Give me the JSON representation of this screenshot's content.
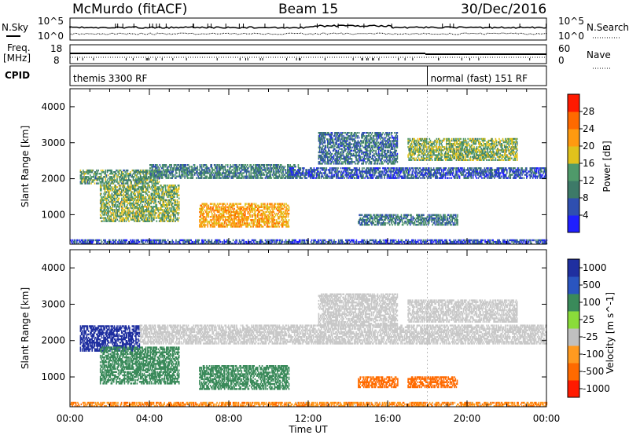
{
  "header": {
    "station": "McMurdo (fitACF)",
    "beam": "Beam 15",
    "date": "30/Dec/2016"
  },
  "aux": {
    "nsky_label": "N.Sky",
    "nsearch_label": "N.Search",
    "freq_label": "Freq.",
    "freq_unit": "[MHz]",
    "nave_label": "Nave",
    "cpid_label": "CPID",
    "nsky_ticks": [
      "10^5",
      "10^0"
    ],
    "freq_ticks": [
      "18",
      "8"
    ],
    "nave_ticks": [
      "60",
      "0"
    ],
    "cpid_segments": [
      {
        "label": "themis 3300 RF",
        "start_hour": 0,
        "end_hour": 18
      },
      {
        "label": "normal (fast) 151 RF",
        "start_hour": 18,
        "end_hour": 24
      }
    ]
  },
  "colors": {
    "power_scale": [
      "#1f1fff",
      "#2f4fb0",
      "#3d7a68",
      "#4f9a6a",
      "#e0c21c",
      "#ff9a10",
      "#ff6a00",
      "#ff1a00"
    ],
    "velocity_scale": [
      "#1f2fa0",
      "#2a55c0",
      "#3a8a5a",
      "#8adc3a",
      "#c0c0c0",
      "#ff9a20",
      "#ff6a00",
      "#ff1a00"
    ],
    "ground_scatter": "#c8c8c8"
  },
  "chart_data": [
    {
      "type": "heatmap",
      "title": "",
      "xlabel": "",
      "ylabel": "Slant Range [km]",
      "xlim": [
        0,
        24
      ],
      "ylim": [
        180,
        4500
      ],
      "x_ticks": [
        "00:00",
        "04:00",
        "08:00",
        "12:00",
        "16:00",
        "20:00",
        "00:00"
      ],
      "y_ticks": [
        1000,
        2000,
        3000,
        4000
      ],
      "colorbar": {
        "label": "Power [dB]",
        "ticks": [
          4,
          8,
          12,
          16,
          20,
          24,
          28
        ],
        "range": [
          0,
          30
        ]
      },
      "regions": [
        {
          "t0": 0.5,
          "t1": 4.5,
          "r0": 1850,
          "r1": 2250,
          "intensity": 12
        },
        {
          "t0": 4.0,
          "t1": 11.5,
          "r0": 2000,
          "r1": 2400,
          "intensity": 10
        },
        {
          "t0": 11.0,
          "t1": 24.0,
          "r0": 2000,
          "r1": 2300,
          "intensity": 6
        },
        {
          "t0": 12.5,
          "t1": 16.5,
          "r0": 2400,
          "r1": 3300,
          "intensity": 8
        },
        {
          "t0": 17.0,
          "t1": 22.5,
          "r0": 2500,
          "r1": 3100,
          "intensity": 14
        },
        {
          "t0": 1.5,
          "t1": 5.5,
          "r0": 800,
          "r1": 1800,
          "intensity": 14
        },
        {
          "t0": 6.5,
          "t1": 11.0,
          "r0": 650,
          "r1": 1300,
          "intensity": 20
        },
        {
          "t0": 14.5,
          "t1": 19.5,
          "r0": 700,
          "r1": 1000,
          "intensity": 9
        },
        {
          "t0": 0.0,
          "t1": 24.0,
          "r0": 180,
          "r1": 300,
          "intensity": 5
        }
      ]
    },
    {
      "type": "heatmap",
      "title": "",
      "xlabel": "Time UT",
      "ylabel": "Slant Range [km]",
      "xlim": [
        0,
        24
      ],
      "ylim": [
        180,
        4500
      ],
      "x_ticks": [
        "00:00",
        "04:00",
        "08:00",
        "12:00",
        "16:00",
        "20:00",
        "00:00"
      ],
      "y_ticks": [
        1000,
        2000,
        3000,
        4000
      ],
      "colorbar": {
        "label": "Velocity [m s^-1]",
        "ticks": [
          1000,
          500,
          100,
          25,
          -25,
          -100,
          -500,
          -1000
        ],
        "range": [
          -1000,
          1000
        ]
      },
      "regions": [
        {
          "t0": 0.5,
          "t1": 3.5,
          "r0": 1700,
          "r1": 2400,
          "velocity": 700
        },
        {
          "t0": 3.5,
          "t1": 24.0,
          "r0": 1900,
          "r1": 2400,
          "velocity": 0
        },
        {
          "t0": 12.5,
          "t1": 16.5,
          "r0": 2400,
          "r1": 3300,
          "velocity": 0
        },
        {
          "t0": 17.0,
          "t1": 22.5,
          "r0": 2500,
          "r1": 3100,
          "velocity": 0
        },
        {
          "t0": 1.5,
          "t1": 5.5,
          "r0": 800,
          "r1": 1800,
          "velocity": 300
        },
        {
          "t0": 6.5,
          "t1": 11.0,
          "r0": 650,
          "r1": 1300,
          "velocity": 250
        },
        {
          "t0": 14.5,
          "t1": 16.5,
          "r0": 700,
          "r1": 1000,
          "velocity": -150
        },
        {
          "t0": 17.0,
          "t1": 19.5,
          "r0": 700,
          "r1": 1000,
          "velocity": -300
        },
        {
          "t0": 0.0,
          "t1": 24.0,
          "r0": 180,
          "r1": 300,
          "velocity": -80
        }
      ]
    }
  ]
}
